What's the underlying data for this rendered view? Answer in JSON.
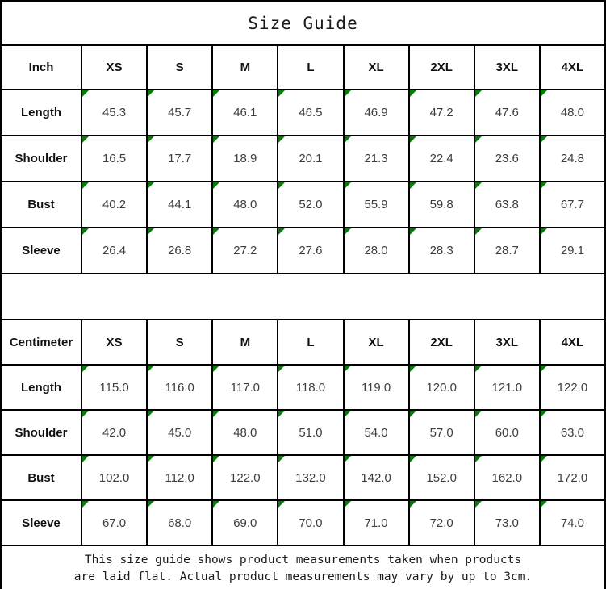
{
  "title": "Size Guide",
  "marker_color": "#008000",
  "inch_table": {
    "unit_label": "Inch",
    "sizes": [
      "XS",
      "S",
      "M",
      "L",
      "XL",
      "2XL",
      "3XL",
      "4XL"
    ],
    "rows": [
      {
        "label": "Length",
        "values": [
          "45.3",
          "45.7",
          "46.1",
          "46.5",
          "46.9",
          "47.2",
          "47.6",
          "48.0"
        ]
      },
      {
        "label": "Shoulder",
        "values": [
          "16.5",
          "17.7",
          "18.9",
          "20.1",
          "21.3",
          "22.4",
          "23.6",
          "24.8"
        ]
      },
      {
        "label": "Bust",
        "values": [
          "40.2",
          "44.1",
          "48.0",
          "52.0",
          "55.9",
          "59.8",
          "63.8",
          "67.7"
        ]
      },
      {
        "label": "Sleeve",
        "values": [
          "26.4",
          "26.8",
          "27.2",
          "27.6",
          "28.0",
          "28.3",
          "28.7",
          "29.1"
        ]
      }
    ]
  },
  "cm_table": {
    "unit_label": "Centimeter",
    "sizes": [
      "XS",
      "S",
      "M",
      "L",
      "XL",
      "2XL",
      "3XL",
      "4XL"
    ],
    "rows": [
      {
        "label": "Length",
        "values": [
          "115.0",
          "116.0",
          "117.0",
          "118.0",
          "119.0",
          "120.0",
          "121.0",
          "122.0"
        ]
      },
      {
        "label": "Shoulder",
        "values": [
          "42.0",
          "45.0",
          "48.0",
          "51.0",
          "54.0",
          "57.0",
          "60.0",
          "63.0"
        ]
      },
      {
        "label": "Bust",
        "values": [
          "102.0",
          "112.0",
          "122.0",
          "132.0",
          "142.0",
          "152.0",
          "162.0",
          "172.0"
        ]
      },
      {
        "label": "Sleeve",
        "values": [
          "67.0",
          "68.0",
          "69.0",
          "70.0",
          "71.0",
          "72.0",
          "73.0",
          "74.0"
        ]
      }
    ]
  },
  "footer": {
    "line1": "This size guide shows product measurements taken when products",
    "line2": "are laid flat. Actual product measurements may vary by up to 3cm."
  }
}
